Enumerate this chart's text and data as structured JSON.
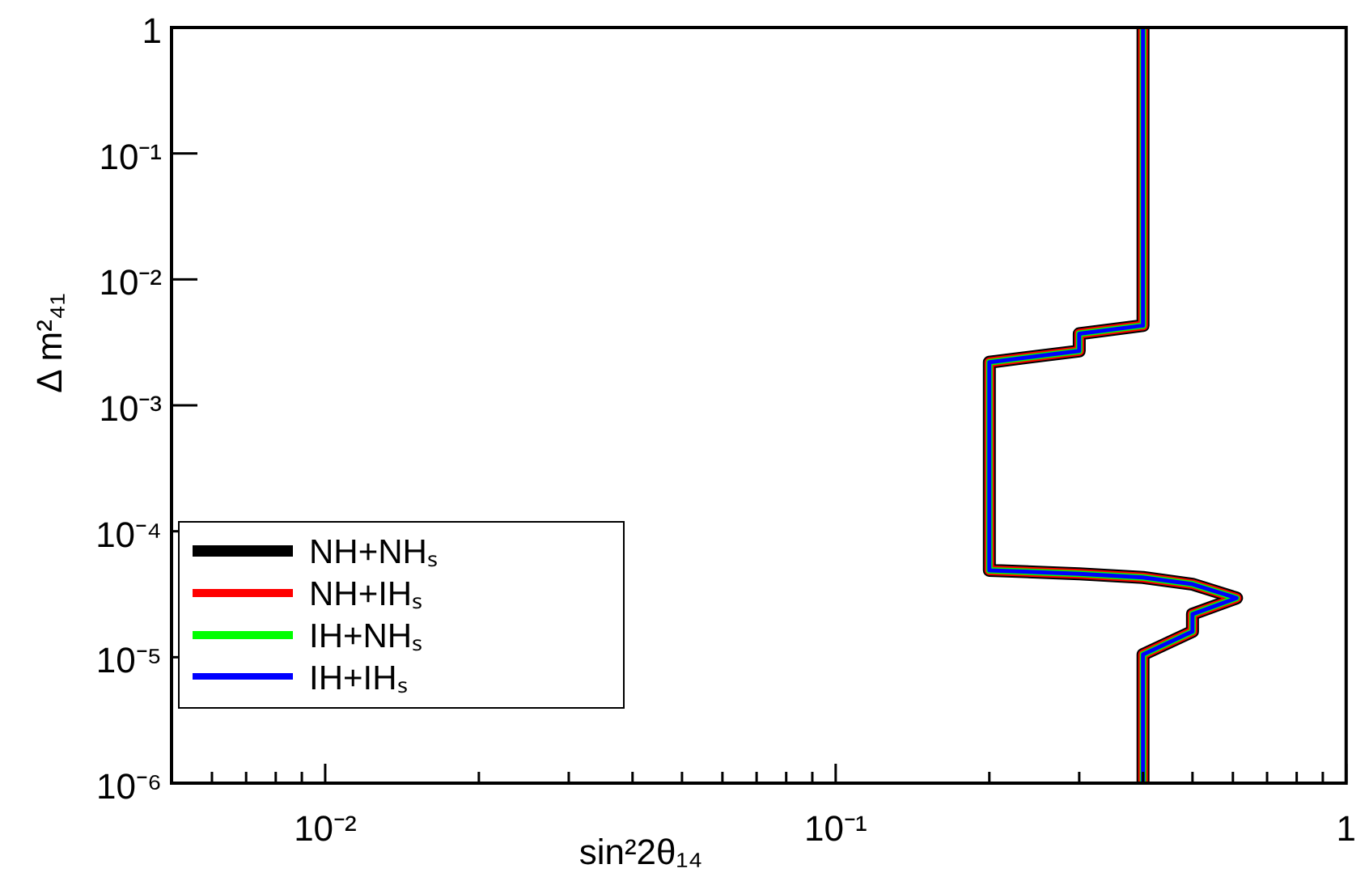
{
  "chart_data": {
    "type": "line",
    "xlabel": "sin²2θ₁₄",
    "ylabel": "Δ m²₄₁",
    "log": "xy",
    "grid": false,
    "legend": "bottom left",
    "marker": "none",
    "line_style": "solid",
    "xlim": [
      0.005,
      1
    ],
    "xticks": [
      {
        "value": 0.006,
        "label": null
      },
      {
        "value": 0.007,
        "label": null
      },
      {
        "value": 0.008,
        "label": null
      },
      {
        "value": 0.009,
        "label": null
      },
      {
        "value": 0.01,
        "label": "10⁻²"
      },
      {
        "value": 0.02,
        "label": null
      },
      {
        "value": 0.03,
        "label": null
      },
      {
        "value": 0.04,
        "label": null
      },
      {
        "value": 0.05,
        "label": null
      },
      {
        "value": 0.06,
        "label": null
      },
      {
        "value": 0.07,
        "label": null
      },
      {
        "value": 0.08,
        "label": null
      },
      {
        "value": 0.09,
        "label": null
      },
      {
        "value": 0.1,
        "label": "10⁻¹"
      },
      {
        "value": 0.2,
        "label": null
      },
      {
        "value": 0.3,
        "label": null
      },
      {
        "value": 0.4,
        "label": null
      },
      {
        "value": 0.5,
        "label": null
      },
      {
        "value": 0.6,
        "label": null
      },
      {
        "value": 0.7,
        "label": null
      },
      {
        "value": 0.8,
        "label": null
      },
      {
        "value": 0.9,
        "label": null
      },
      {
        "value": 1,
        "label": "1"
      }
    ],
    "ylim": [
      1e-06,
      1
    ],
    "yticks": [
      {
        "value": 1e-06,
        "label": "10⁻⁶"
      },
      {
        "value": 1e-05,
        "label": "10⁻⁵"
      },
      {
        "value": 0.0001,
        "label": "10⁻⁴"
      },
      {
        "value": 0.001,
        "label": "10⁻³"
      },
      {
        "value": 0.01,
        "label": "10⁻²"
      },
      {
        "value": 0.1,
        "label": "10⁻¹"
      },
      {
        "value": 1,
        "label": "1"
      }
    ],
    "x": [
      0.4,
      0.4,
      0.3,
      0.3,
      0.2,
      0.2,
      0.3,
      0.4,
      0.5,
      0.61,
      0.5,
      0.5,
      0.4,
      0.4
    ],
    "series": [
      {
        "name": "NH+NHₛ",
        "color": "#000000",
        "values": [
          1,
          0.0043,
          0.0037,
          0.0027,
          0.0022,
          4.9e-05,
          4.6e-05,
          4.3e-05,
          3.8e-05,
          2.95e-05,
          2.2e-05,
          1.6e-05,
          1.05e-05,
          1e-06
        ]
      },
      {
        "name": "NH+IHₛ",
        "color": "#ff0000",
        "values": [
          1,
          0.0043,
          0.0037,
          0.0027,
          0.0022,
          4.9e-05,
          4.6e-05,
          4.3e-05,
          3.8e-05,
          2.95e-05,
          2.2e-05,
          1.6e-05,
          1.05e-05,
          1e-06
        ]
      },
      {
        "name": "IH+NHₛ",
        "color": "#00ff00",
        "values": [
          1,
          0.0043,
          0.0037,
          0.0027,
          0.0022,
          4.9e-05,
          4.6e-05,
          4.3e-05,
          3.8e-05,
          2.95e-05,
          2.2e-05,
          1.6e-05,
          1.05e-05,
          1e-06
        ]
      },
      {
        "name": "IH+IHₛ",
        "color": "#0000ff",
        "values": [
          1,
          0.0043,
          0.0037,
          0.0027,
          0.0022,
          4.9e-05,
          4.6e-05,
          4.3e-05,
          3.8e-05,
          2.95e-05,
          2.2e-05,
          1.6e-05,
          1.05e-05,
          1e-06
        ]
      }
    ]
  }
}
